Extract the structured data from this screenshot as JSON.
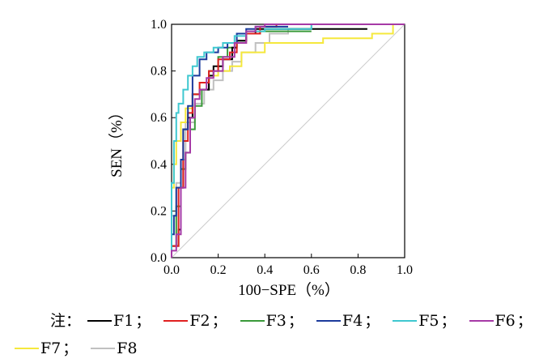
{
  "chart_data": {
    "type": "line",
    "xlabel": "100−SPE（%）",
    "ylabel": "SEN（%）",
    "xlim": [
      0,
      1.0
    ],
    "ylim": [
      0,
      1.0
    ],
    "x_ticks": [
      "0.0",
      "0.2",
      "0.4",
      "0.6",
      "0.8",
      "1.0"
    ],
    "y_ticks": [
      "0.0",
      "0.2",
      "0.4",
      "0.6",
      "0.8",
      "1.0"
    ],
    "grid": false,
    "reference_line": {
      "x": [
        0,
        1
      ],
      "y": [
        0,
        1
      ],
      "color": "#cccccc"
    },
    "series": [
      {
        "name": "F1",
        "color": "#000000",
        "x": [
          0,
          0.03,
          0.04,
          0.05,
          0.07,
          0.09,
          0.12,
          0.16,
          0.18,
          0.22,
          0.26,
          0.28,
          0.32,
          0.36,
          0.4,
          0.5,
          0.84
        ],
        "y": [
          0,
          0.05,
          0.12,
          0.3,
          0.55,
          0.6,
          0.7,
          0.72,
          0.78,
          0.82,
          0.85,
          0.9,
          0.93,
          0.96,
          0.98,
          0.98,
          0.98
        ]
      },
      {
        "name": "F2",
        "color": "#e02020",
        "x": [
          0,
          0.03,
          0.05,
          0.07,
          0.09,
          0.12,
          0.16,
          0.2,
          0.25,
          0.28,
          0.32,
          0.38,
          0.45,
          1.0
        ],
        "y": [
          0,
          0.05,
          0.3,
          0.5,
          0.62,
          0.7,
          0.75,
          0.8,
          0.85,
          0.88,
          0.92,
          0.96,
          0.99,
          1.0
        ]
      },
      {
        "name": "F3",
        "color": "#3a9a3a",
        "x": [
          0,
          0.02,
          0.04,
          0.06,
          0.08,
          0.1,
          0.13,
          0.16,
          0.2,
          0.24,
          0.28,
          0.32,
          0.38,
          0.46,
          0.6
        ],
        "y": [
          0,
          0.05,
          0.22,
          0.38,
          0.45,
          0.55,
          0.65,
          0.72,
          0.8,
          0.86,
          0.9,
          0.93,
          0.96,
          0.97,
          0.97
        ]
      },
      {
        "name": "F4",
        "color": "#1c3b9c",
        "x": [
          0,
          0.01,
          0.02,
          0.04,
          0.05,
          0.07,
          0.09,
          0.12,
          0.15,
          0.2,
          0.24,
          0.28,
          0.32,
          0.36,
          0.42,
          0.5
        ],
        "y": [
          0,
          0.1,
          0.18,
          0.3,
          0.42,
          0.55,
          0.65,
          0.78,
          0.85,
          0.88,
          0.9,
          0.92,
          0.96,
          0.98,
          0.99,
          0.99
        ]
      },
      {
        "name": "F5",
        "color": "#3fc8d0",
        "x": [
          0,
          0.01,
          0.02,
          0.03,
          0.05,
          0.07,
          0.09,
          0.11,
          0.14,
          0.18,
          0.22,
          0.27,
          0.32,
          0.4,
          0.6,
          1.0
        ],
        "y": [
          0,
          0.32,
          0.5,
          0.62,
          0.66,
          0.72,
          0.78,
          0.82,
          0.86,
          0.88,
          0.9,
          0.92,
          0.95,
          0.97,
          0.98,
          1.0
        ]
      },
      {
        "name": "F6",
        "color": "#a63aa6",
        "x": [
          0,
          0.02,
          0.04,
          0.06,
          0.08,
          0.1,
          0.12,
          0.15,
          0.18,
          0.22,
          0.27,
          0.32,
          0.36,
          0.4,
          0.5,
          1.0
        ],
        "y": [
          0,
          0.03,
          0.1,
          0.3,
          0.45,
          0.6,
          0.68,
          0.72,
          0.77,
          0.8,
          0.86,
          0.92,
          0.97,
          0.99,
          1.0,
          1.0
        ]
      },
      {
        "name": "F7",
        "color": "#f5e83c",
        "x": [
          0,
          0.01,
          0.02,
          0.04,
          0.06,
          0.09,
          0.12,
          0.16,
          0.2,
          0.25,
          0.3,
          0.4,
          0.55,
          0.65,
          0.86,
          0.95,
          1.0
        ],
        "y": [
          0,
          0.3,
          0.4,
          0.5,
          0.58,
          0.64,
          0.7,
          0.75,
          0.78,
          0.8,
          0.82,
          0.88,
          0.92,
          0.92,
          0.94,
          0.96,
          1.0
        ]
      },
      {
        "name": "F8",
        "color": "#c0c0c0",
        "x": [
          0,
          0.02,
          0.04,
          0.06,
          0.1,
          0.14,
          0.18,
          0.22,
          0.26,
          0.3,
          0.36,
          0.42,
          0.5,
          0.6,
          1.0
        ],
        "y": [
          0,
          0.18,
          0.32,
          0.42,
          0.58,
          0.66,
          0.72,
          0.76,
          0.8,
          0.84,
          0.88,
          0.92,
          0.96,
          0.98,
          1.0
        ]
      }
    ]
  },
  "legend": {
    "note_label": "注：",
    "separator": "；"
  }
}
